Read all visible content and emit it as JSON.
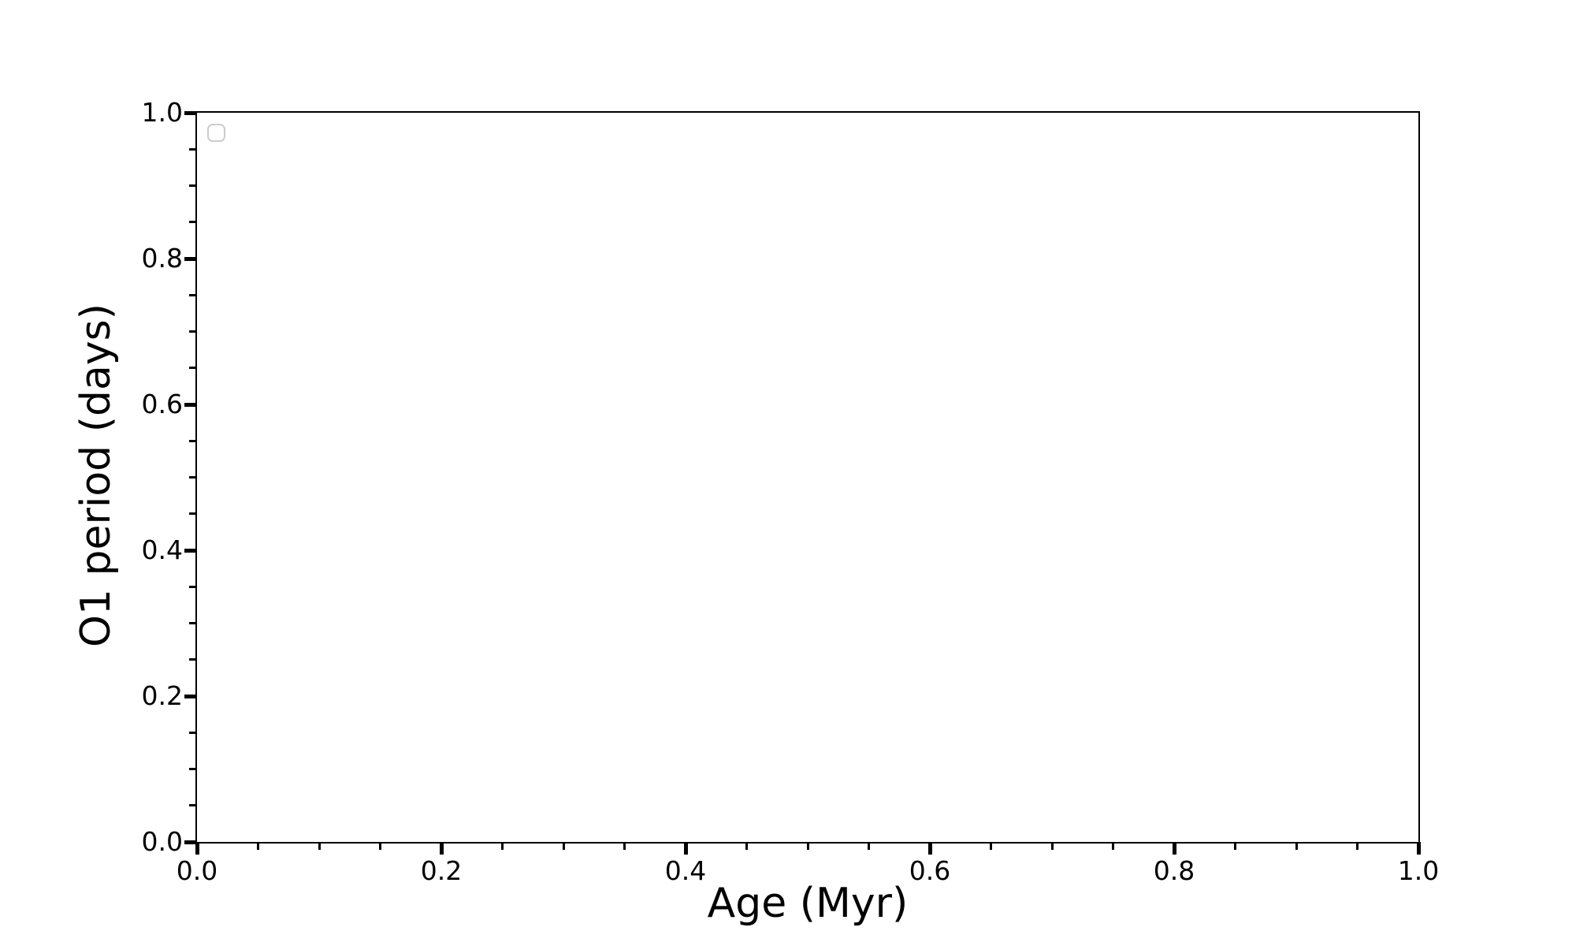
{
  "chart_data": {
    "type": "scatter",
    "title": "",
    "xlabel": "Age (Myr)",
    "ylabel": "O1 period (days)",
    "xlim": [
      0.0,
      1.0
    ],
    "ylim": [
      0.0,
      1.0
    ],
    "x_ticks": {
      "major": [
        0.0,
        0.2,
        0.4,
        0.6,
        0.8,
        1.0
      ],
      "labels": [
        "0.0",
        "0.2",
        "0.4",
        "0.6",
        "0.8",
        "1.0"
      ],
      "minor_step": 0.05
    },
    "y_ticks": {
      "major": [
        0.0,
        0.2,
        0.4,
        0.6,
        0.8,
        1.0
      ],
      "labels": [
        "0.0",
        "0.2",
        "0.4",
        "0.6",
        "0.8",
        "1.0"
      ],
      "minor_step": 0.05
    },
    "grid": false,
    "legend": {
      "visible": true,
      "location": "upper-left",
      "entries": []
    },
    "series": [],
    "colors": {
      "axes": "#000000",
      "text": "#000000",
      "legend_border": "#cccccc",
      "background": "#ffffff"
    }
  }
}
